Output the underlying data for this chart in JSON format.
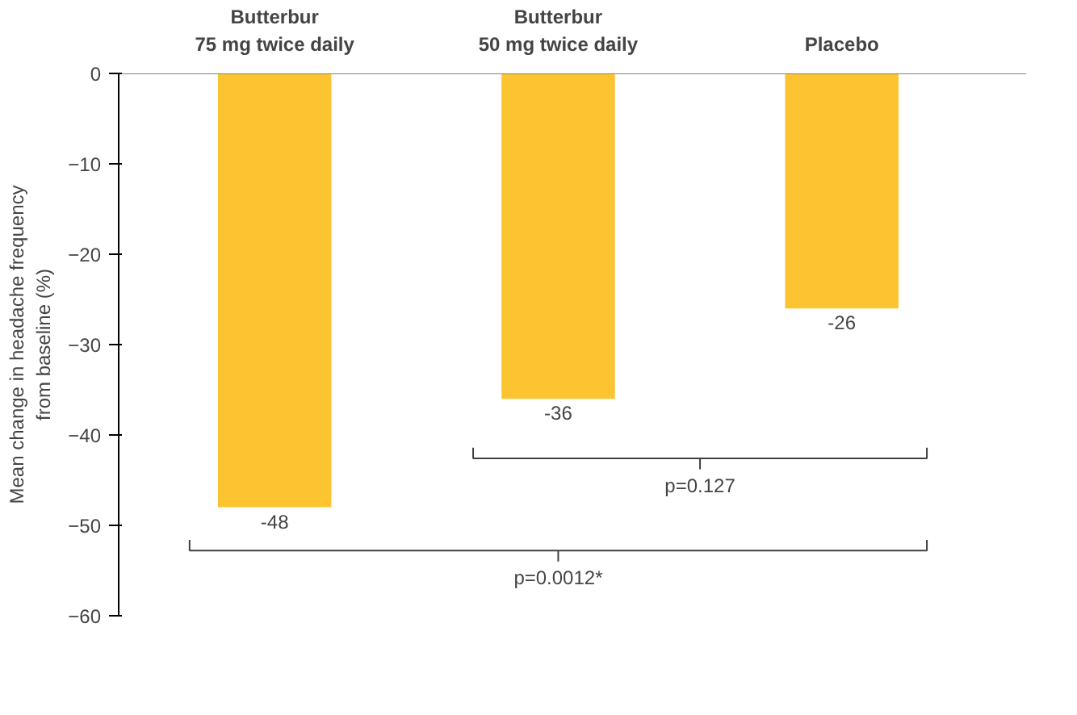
{
  "chart_data": {
    "type": "bar",
    "ylabel": "Mean change in headache frequency\nfrom baseline (%)",
    "categories": [
      "Butterbur\n75 mg twice daily",
      "Butterbur\n50 mg twice daily",
      "Placebo"
    ],
    "values": [
      -48,
      -36,
      -26
    ],
    "color": "#fdc431",
    "ylim": [
      -60,
      0
    ],
    "yticks": [
      0,
      -10,
      -20,
      -30,
      -40,
      -50,
      -60
    ],
    "grid": false,
    "data_labels": true,
    "annotations": [
      "p=0.127",
      "p=0.0012*"
    ]
  }
}
